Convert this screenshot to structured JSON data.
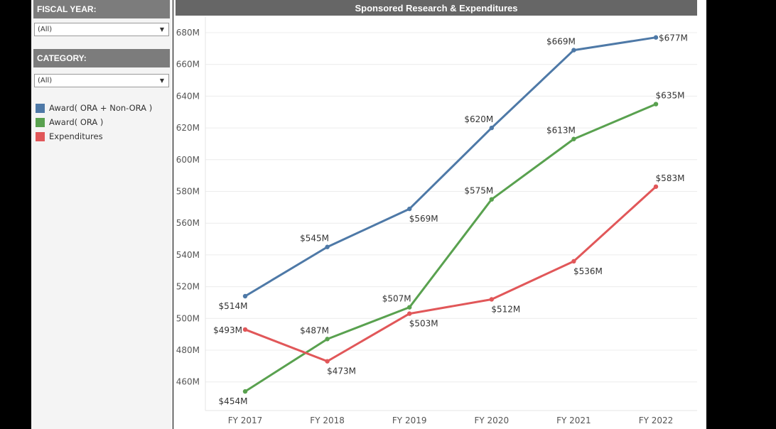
{
  "sidebar": {
    "fiscal_year_label": "FISCAL YEAR:",
    "fiscal_year_value": "(All)",
    "category_label": "CATEGORY:",
    "category_value": "(All)"
  },
  "chart_data": {
    "type": "line",
    "title": "Sponsored Research & Expenditures",
    "xlabel": "",
    "ylabel": "",
    "categories": [
      "FY 2017",
      "FY 2018",
      "FY 2019",
      "FY 2020",
      "FY 2021",
      "FY 2022"
    ],
    "ylim": [
      440,
      684
    ],
    "yticks": [
      460,
      480,
      500,
      520,
      540,
      560,
      580,
      600,
      620,
      640,
      660,
      680
    ],
    "ytick_labels": [
      "460M",
      "480M",
      "500M",
      "520M",
      "540M",
      "560M",
      "580M",
      "600M",
      "620M",
      "640M",
      "660M",
      "680M"
    ],
    "grid": "horizontal",
    "legend_position": "left",
    "series": [
      {
        "name": "Award( ORA + Non-ORA )",
        "color": "#4e79a7",
        "values": [
          514,
          545,
          569,
          620,
          669,
          677
        ],
        "labels": [
          "$514M",
          "$545M",
          "$569M",
          "$620M",
          "$669M",
          "$677M"
        ],
        "label_pos": [
          "below",
          "above",
          "below",
          "above",
          "above",
          "right"
        ]
      },
      {
        "name": "Award( ORA )",
        "color": "#59a14f",
        "values": [
          454,
          487,
          507,
          575,
          613,
          635
        ],
        "labels": [
          "$454M",
          "$487M",
          "$507M",
          "$575M",
          "$613M",
          "$635M"
        ],
        "label_pos": [
          "below",
          "above",
          "above",
          "above",
          "above",
          "above"
        ]
      },
      {
        "name": "Expenditures",
        "color": "#e15759",
        "values": [
          493,
          473,
          503,
          512,
          536,
          583
        ],
        "labels": [
          "$493M",
          "$473M",
          "$503M",
          "$512M",
          "$536M",
          "$583M"
        ],
        "label_pos": [
          "left",
          "below",
          "below",
          "below",
          "below",
          "above"
        ]
      }
    ]
  }
}
